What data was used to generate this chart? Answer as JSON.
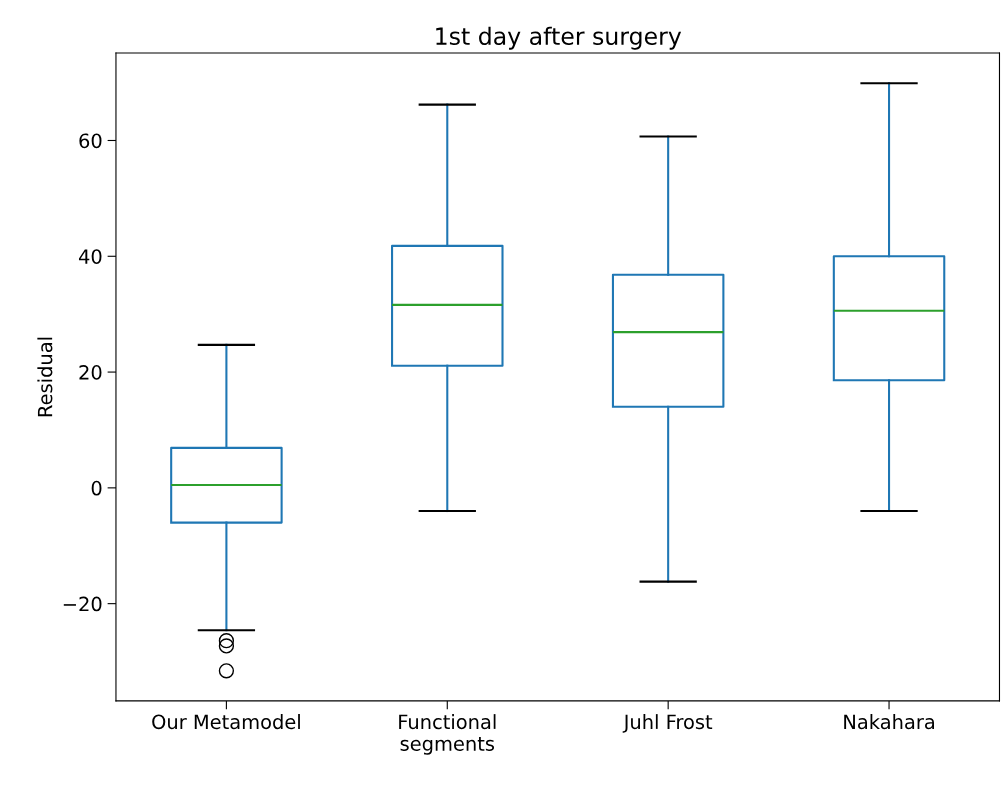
{
  "chart_data": {
    "type": "box",
    "title": "1st day after surgery",
    "ylabel": "Residual",
    "categories": [
      "Our Metamodel",
      "Functional\nsegments",
      "Juhl Frost",
      "Nakahara"
    ],
    "boxes": [
      {
        "low": -24.6,
        "q1": -6.0,
        "median": 0.5,
        "q3": 6.9,
        "high": 24.7,
        "outliers": [
          -26.4,
          -27.3,
          -31.6
        ]
      },
      {
        "low": -4.0,
        "q1": 21.1,
        "median": 31.6,
        "q3": 41.8,
        "high": 66.2
      },
      {
        "low": -16.2,
        "q1": 14.0,
        "median": 26.9,
        "q3": 36.8,
        "high": 60.7
      },
      {
        "low": -4.0,
        "q1": 18.6,
        "median": 30.6,
        "q3": 40.0,
        "high": 69.9
      }
    ],
    "ylim": [
      -36.8,
      75.1
    ],
    "yticks": [
      {
        "value": -20,
        "label": "−20"
      },
      0,
      20,
      40,
      60
    ],
    "grid": false
  }
}
